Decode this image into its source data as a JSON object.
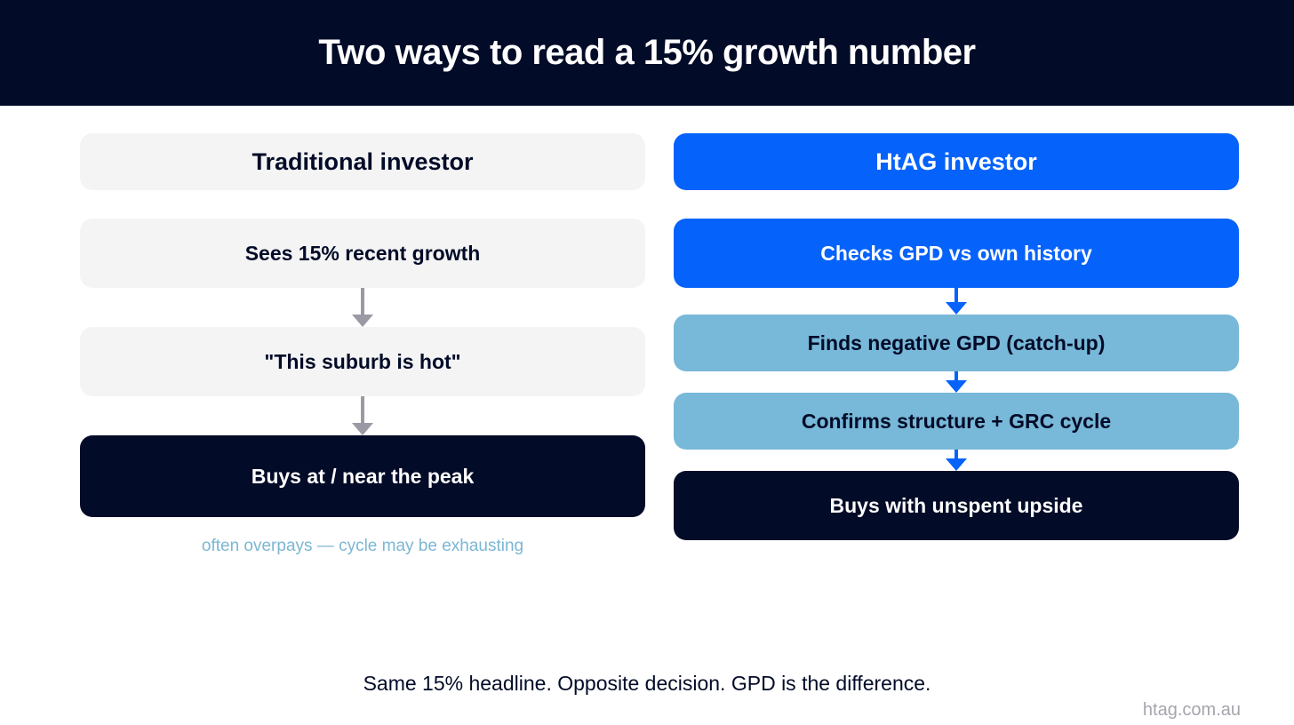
{
  "title": "Two ways to read a 15% growth number",
  "left": {
    "heading": "Traditional investor",
    "steps": [
      "Sees 15% recent growth",
      "\"This suburb is hot\"",
      "Buys at / near the peak"
    ],
    "note": "often overpays — cycle may be exhausting"
  },
  "right": {
    "heading": "HtAG investor",
    "steps": [
      "Checks GPD vs own history",
      "Finds negative GPD (catch-up)",
      "Confirms structure + GRC cycle",
      "Buys with unspent upside"
    ]
  },
  "footer": "Same 15% headline. Opposite decision. GPD is the difference.",
  "brand": "htag.com.au",
  "colors": {
    "navy": "#020b27",
    "blue": "#0562fb",
    "light_blue": "#78b8d8",
    "grey": "#f4f4f5"
  }
}
